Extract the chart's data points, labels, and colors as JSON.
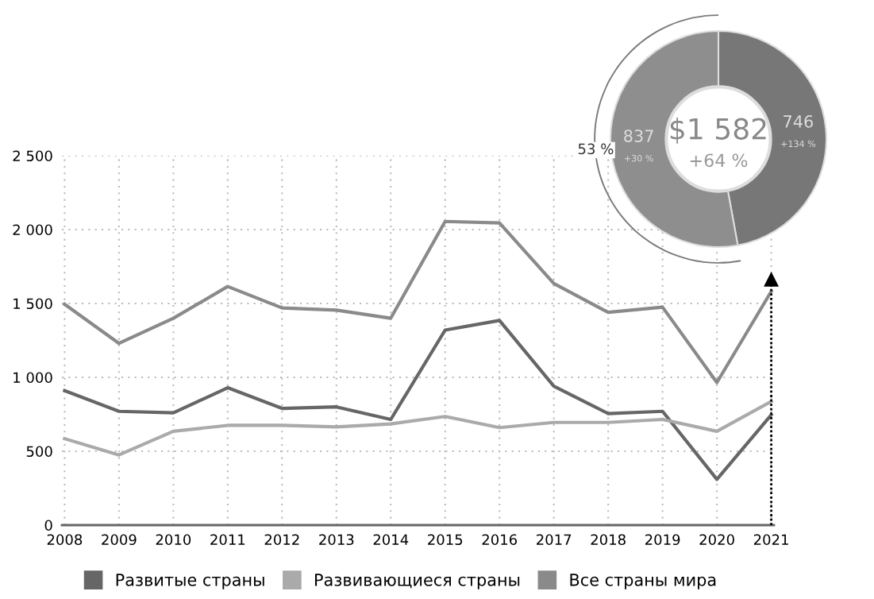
{
  "chart_data": [
    {
      "type": "line",
      "categories": [
        "2008",
        "2009",
        "2010",
        "2011",
        "2012",
        "2013",
        "2014",
        "2015",
        "2016",
        "2017",
        "2018",
        "2019",
        "2020",
        "2021"
      ],
      "series": [
        {
          "name": "Развитые страны",
          "color": "#666666",
          "values": [
            910,
            770,
            760,
            930,
            790,
            800,
            715,
            1320,
            1385,
            940,
            755,
            770,
            310,
            746
          ]
        },
        {
          "name": "Развивающиеся страны",
          "color": "#aaaaaa",
          "values": [
            585,
            475,
            635,
            675,
            675,
            665,
            685,
            735,
            660,
            695,
            695,
            715,
            635,
            837
          ]
        },
        {
          "name": "Все страны мира",
          "color": "#8a8a8a",
          "values": [
            1495,
            1230,
            1400,
            1615,
            1470,
            1455,
            1400,
            2055,
            2045,
            1635,
            1440,
            1475,
            965,
            1582
          ]
        }
      ],
      "ylim": [
        0,
        2500
      ],
      "yticks": [
        0,
        500,
        {
          "value": 1000,
          "label": "1 000"
        },
        {
          "value": 1500,
          "label": "1 500"
        },
        {
          "value": 2000,
          "label": "2 000"
        },
        {
          "value": 2500,
          "label": "2 500"
        }
      ],
      "grid": true,
      "legend": "bottom",
      "marker": "none",
      "line_style": "solid"
    },
    {
      "type": "donut",
      "categories": [
        null,
        null
      ],
      "values": [
        746,
        837
      ],
      "colors": [
        "#777777",
        "#8e8e8e"
      ],
      "data_labels": true,
      "annotations": [
        "$1 582",
        "+64 %",
        "+134 %",
        "+30 %",
        "53 %"
      ]
    }
  ]
}
